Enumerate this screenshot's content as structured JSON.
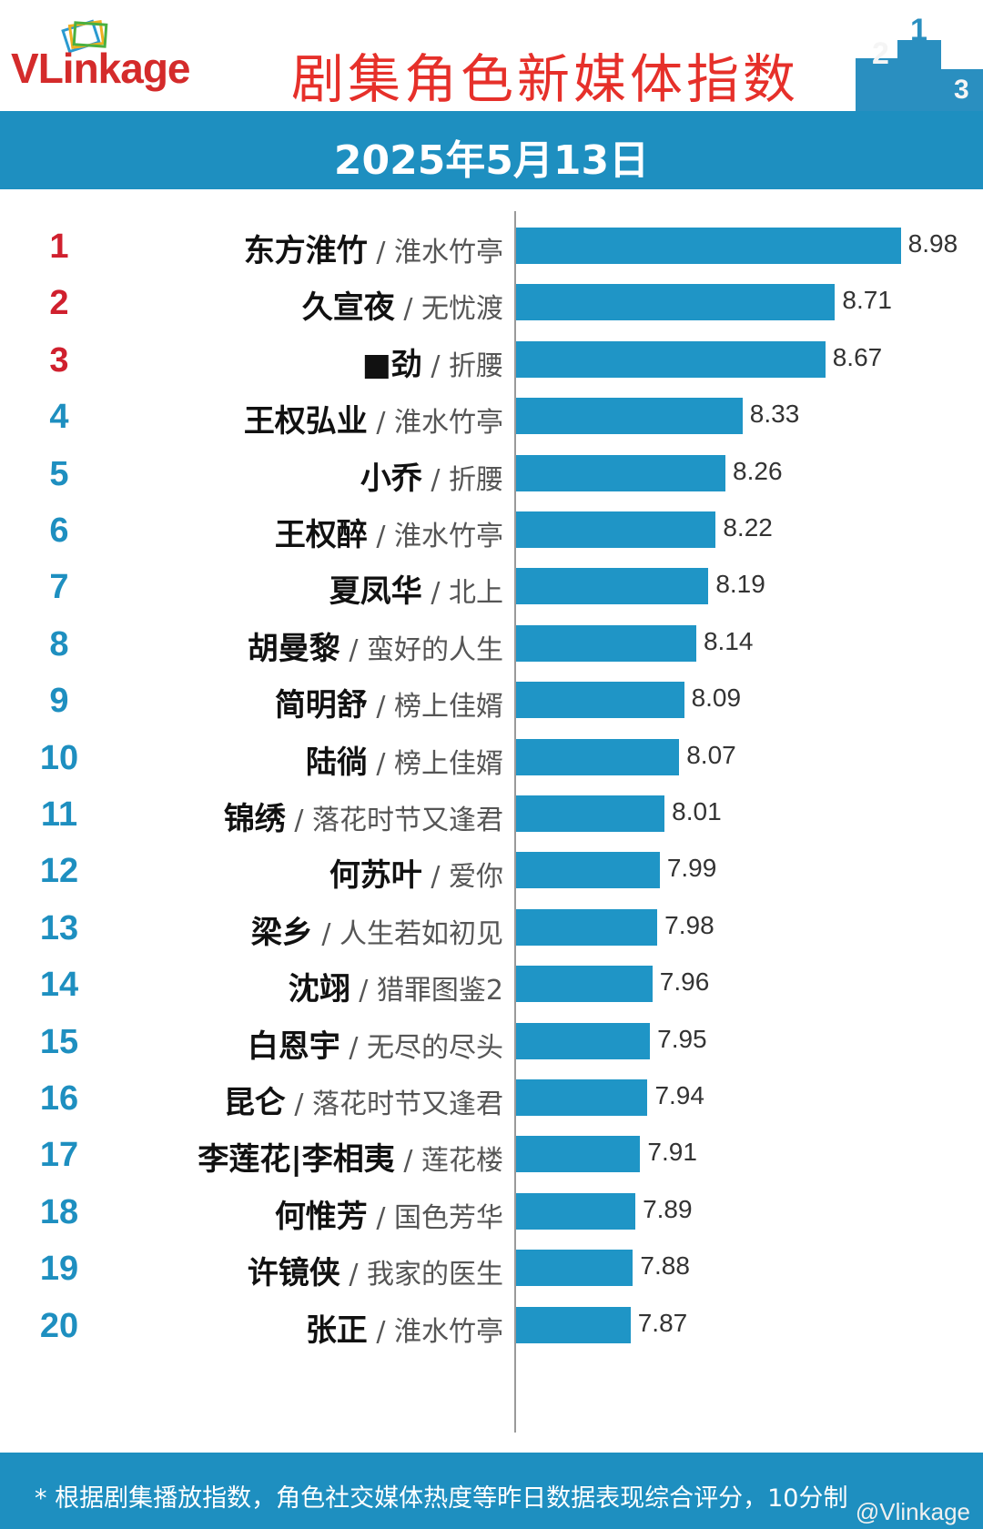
{
  "header": {
    "logo_v": "V",
    "logo_rest": "Linkage",
    "title": "剧集角色新媒体指数",
    "podium_labels": [
      "2",
      "1",
      "3"
    ]
  },
  "date": "2025年5月13日",
  "colors": {
    "bar": "#1f95c6",
    "band": "#1e8fc0",
    "top_rank": "#d0202e",
    "rank": "#1e8fc0",
    "title": "#e6302a"
  },
  "chart_data": {
    "type": "bar",
    "orientation": "horizontal",
    "title": "剧集角色新媒体指数",
    "xlim": [
      7.4,
      9.0
    ],
    "categories": [
      {
        "rank": "1",
        "name": "东方淮竹",
        "drama": "淮水竹亭"
      },
      {
        "rank": "2",
        "name": "久宣夜",
        "drama": "无忧渡"
      },
      {
        "rank": "3",
        "name": "■劲",
        "drama": "折腰"
      },
      {
        "rank": "4",
        "name": "王权弘业",
        "drama": "淮水竹亭"
      },
      {
        "rank": "5",
        "name": "小乔",
        "drama": "折腰"
      },
      {
        "rank": "6",
        "name": "王权醉",
        "drama": "淮水竹亭"
      },
      {
        "rank": "7",
        "name": "夏凤华",
        "drama": "北上"
      },
      {
        "rank": "8",
        "name": "胡曼黎",
        "drama": "蛮好的人生"
      },
      {
        "rank": "9",
        "name": "简明舒",
        "drama": "榜上佳婿"
      },
      {
        "rank": "10",
        "name": "陆徜",
        "drama": "榜上佳婿"
      },
      {
        "rank": "11",
        "name": "锦绣",
        "drama": "落花时节又逢君"
      },
      {
        "rank": "12",
        "name": "何苏叶",
        "drama": "爱你"
      },
      {
        "rank": "13",
        "name": "梁乡",
        "drama": "人生若如初见"
      },
      {
        "rank": "14",
        "name": "沈翊",
        "drama": "猎罪图鉴2"
      },
      {
        "rank": "15",
        "name": "白恩宇",
        "drama": "无尽的尽头"
      },
      {
        "rank": "16",
        "name": "昆仑",
        "drama": "落花时节又逢君"
      },
      {
        "rank": "17",
        "name": "李莲花|李相夷",
        "drama": "莲花楼"
      },
      {
        "rank": "18",
        "name": "何惟芳",
        "drama": "国色芳华"
      },
      {
        "rank": "19",
        "name": "许镜侠",
        "drama": "我家的医生"
      },
      {
        "rank": "20",
        "name": "张正",
        "drama": "淮水竹亭"
      }
    ],
    "values": [
      8.98,
      8.71,
      8.67,
      8.33,
      8.26,
      8.22,
      8.19,
      8.14,
      8.09,
      8.07,
      8.01,
      7.99,
      7.98,
      7.96,
      7.95,
      7.94,
      7.91,
      7.89,
      7.88,
      7.87
    ],
    "value_labels": [
      "8.98",
      "8.71",
      "8.67",
      "8.33",
      "8.26",
      "8.22",
      "8.19",
      "8.14",
      "8.09",
      "8.07",
      "8.01",
      "7.99",
      "7.98",
      "7.96",
      "7.95",
      "7.94",
      "7.91",
      "7.89",
      "7.88",
      "7.87"
    ]
  },
  "footer": {
    "note": "* 根据剧集播放指数，角色社交媒体热度等昨日数据表现综合评分，10分制",
    "watermark": "@Vlinkage"
  }
}
